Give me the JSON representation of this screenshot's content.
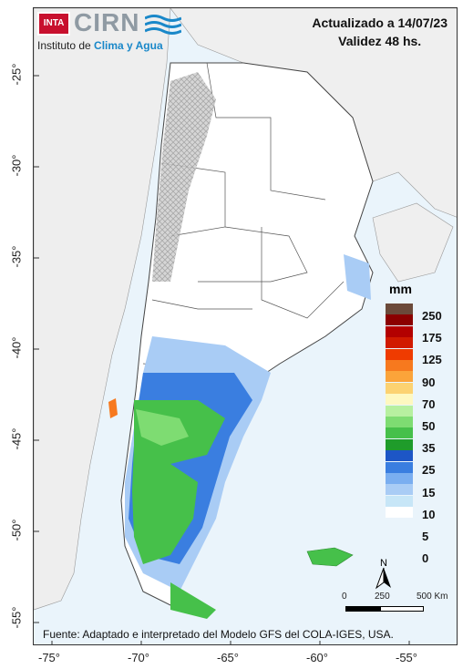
{
  "header": {
    "line1": "Actualizado a 14/07/23",
    "line2": "Validez 48 hs."
  },
  "logo": {
    "badge": "INTA",
    "name": "CIRN",
    "subtitle_plain": "Instituto de ",
    "subtitle_highlight": "Clima y Agua"
  },
  "axes": {
    "y_ticks": [
      "-25°",
      "-30°",
      "-35°",
      "-40°",
      "-45°",
      "-50°",
      "-55°"
    ],
    "x_ticks": [
      "-75°",
      "-70°",
      "-65°",
      "-60°",
      "-55°"
    ]
  },
  "legend": {
    "unit": "mm",
    "levels": [
      "250",
      "175",
      "125",
      "90",
      "70",
      "50",
      "35",
      "25",
      "15",
      "10",
      "5",
      "0"
    ],
    "colors": [
      "#6b4a3a",
      "#8b0000",
      "#b30000",
      "#d11a00",
      "#ef3b00",
      "#f7791e",
      "#fba43a",
      "#fcd271",
      "#fef8c0",
      "#b7f0a0",
      "#7edc72",
      "#46c04a",
      "#1f9c2a",
      "#1d56c6",
      "#3a7ee0",
      "#7aaef0",
      "#a9ccf5",
      "#c7e6f7",
      "#ffffff"
    ]
  },
  "scale": {
    "labels": [
      "0",
      "250",
      "500 Km"
    ]
  },
  "source": "Fuente: Adaptado e interpretado del Modelo GFS del COLA-IGES, USA."
}
